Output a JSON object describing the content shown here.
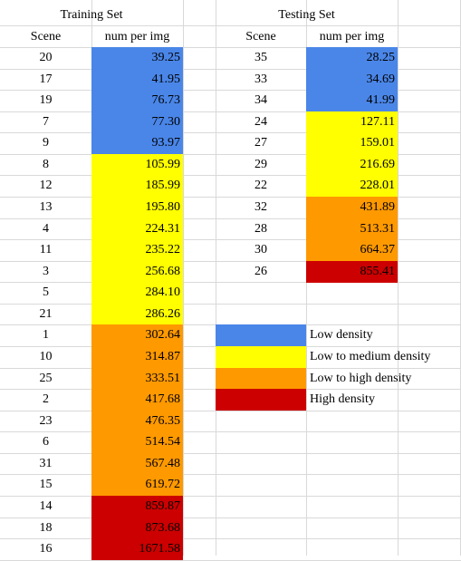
{
  "training": {
    "title": "Training Set",
    "col_scene": "Scene",
    "col_num": "num per img",
    "rows": [
      {
        "scene": "20",
        "num": "39.25",
        "density": "low"
      },
      {
        "scene": "17",
        "num": "41.95",
        "density": "low"
      },
      {
        "scene": "19",
        "num": "76.73",
        "density": "low"
      },
      {
        "scene": "7",
        "num": "77.30",
        "density": "low"
      },
      {
        "scene": "9",
        "num": "93.97",
        "density": "low"
      },
      {
        "scene": "8",
        "num": "105.99",
        "density": "low_medium"
      },
      {
        "scene": "12",
        "num": "185.99",
        "density": "low_medium"
      },
      {
        "scene": "13",
        "num": "195.80",
        "density": "low_medium"
      },
      {
        "scene": "4",
        "num": "224.31",
        "density": "low_medium"
      },
      {
        "scene": "11",
        "num": "235.22",
        "density": "low_medium"
      },
      {
        "scene": "3",
        "num": "256.68",
        "density": "low_medium"
      },
      {
        "scene": "5",
        "num": "284.10",
        "density": "low_medium"
      },
      {
        "scene": "21",
        "num": "286.26",
        "density": "low_medium"
      },
      {
        "scene": "1",
        "num": "302.64",
        "density": "low_high"
      },
      {
        "scene": "10",
        "num": "314.87",
        "density": "low_high"
      },
      {
        "scene": "25",
        "num": "333.51",
        "density": "low_high"
      },
      {
        "scene": "2",
        "num": "417.68",
        "density": "low_high"
      },
      {
        "scene": "23",
        "num": "476.35",
        "density": "low_high"
      },
      {
        "scene": "6",
        "num": "514.54",
        "density": "low_high"
      },
      {
        "scene": "31",
        "num": "567.48",
        "density": "low_high"
      },
      {
        "scene": "15",
        "num": "619.72",
        "density": "low_high"
      },
      {
        "scene": "14",
        "num": "859.87",
        "density": "high"
      },
      {
        "scene": "18",
        "num": "873.68",
        "density": "high"
      },
      {
        "scene": "16",
        "num": "1671.58",
        "density": "high"
      }
    ]
  },
  "testing": {
    "title": "Testing Set",
    "col_scene": "Scene",
    "col_num": "num per img",
    "rows": [
      {
        "scene": "35",
        "num": "28.25",
        "density": "low"
      },
      {
        "scene": "33",
        "num": "34.69",
        "density": "low"
      },
      {
        "scene": "34",
        "num": "41.99",
        "density": "low"
      },
      {
        "scene": "24",
        "num": "127.11",
        "density": "low_medium"
      },
      {
        "scene": "27",
        "num": "159.01",
        "density": "low_medium"
      },
      {
        "scene": "29",
        "num": "216.69",
        "density": "low_medium"
      },
      {
        "scene": "22",
        "num": "228.01",
        "density": "low_medium"
      },
      {
        "scene": "32",
        "num": "431.89",
        "density": "low_high"
      },
      {
        "scene": "28",
        "num": "513.31",
        "density": "low_high"
      },
      {
        "scene": "30",
        "num": "664.37",
        "density": "low_high"
      },
      {
        "scene": "26",
        "num": "855.41",
        "density": "high"
      }
    ]
  },
  "legend": [
    {
      "key": "low",
      "label": "Low density"
    },
    {
      "key": "low_medium",
      "label": "Low to medium density"
    },
    {
      "key": "low_high",
      "label": "Low to high density"
    },
    {
      "key": "high",
      "label": "High density"
    }
  ],
  "colors": {
    "low": "#4a86e8",
    "low_medium": "#ffff00",
    "low_high": "#ff9900",
    "high": "#cc0000",
    "grid": "#d9d9d9"
  }
}
